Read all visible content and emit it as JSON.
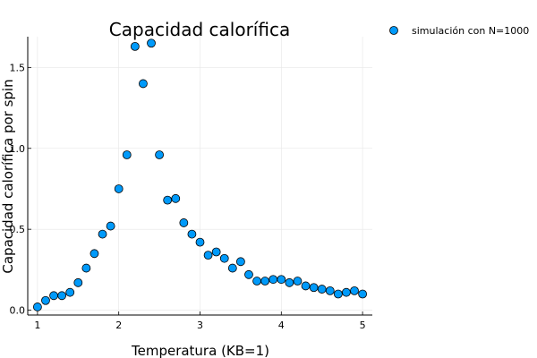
{
  "chart_data": {
    "type": "scatter",
    "title": "Capacidad calorífica",
    "xlabel": "Temperatura (KB=1)",
    "ylabel": "Capacidad calorífica por spin",
    "xlim": [
      0.88,
      5.12
    ],
    "ylim": [
      -0.03,
      1.69
    ],
    "xticks": [
      1,
      2,
      3,
      4,
      5
    ],
    "xtick_labels": [
      "1",
      "2",
      "3",
      "4",
      "5"
    ],
    "yticks": [
      0,
      0.5,
      1.0,
      1.5
    ],
    "ytick_labels": [
      "0.0",
      "0.5",
      "1.0",
      "1.5"
    ],
    "grid": true,
    "legend_position": "outside-top-right",
    "series": [
      {
        "name": "simulación con N=1000",
        "color": "#009AFA",
        "marker": "circle",
        "x": [
          1.0,
          1.1,
          1.2,
          1.3,
          1.4,
          1.5,
          1.6,
          1.7,
          1.8,
          1.9,
          2.0,
          2.1,
          2.2,
          2.3,
          2.4,
          2.5,
          2.6,
          2.7,
          2.8,
          2.9,
          3.0,
          3.1,
          3.2,
          3.3,
          3.4,
          3.5,
          3.6,
          3.7,
          3.8,
          3.9,
          4.0,
          4.1,
          4.2,
          4.3,
          4.4,
          4.5,
          4.6,
          4.7,
          4.8,
          4.9,
          5.0
        ],
        "y": [
          0.02,
          0.06,
          0.09,
          0.09,
          0.11,
          0.17,
          0.26,
          0.35,
          0.47,
          0.52,
          0.75,
          0.96,
          1.63,
          1.4,
          1.65,
          0.96,
          0.68,
          0.69,
          0.54,
          0.47,
          0.42,
          0.34,
          0.36,
          0.32,
          0.26,
          0.3,
          0.22,
          0.18,
          0.18,
          0.19,
          0.19,
          0.17,
          0.18,
          0.15,
          0.14,
          0.13,
          0.12,
          0.1,
          0.11,
          0.12,
          0.1
        ]
      }
    ]
  }
}
